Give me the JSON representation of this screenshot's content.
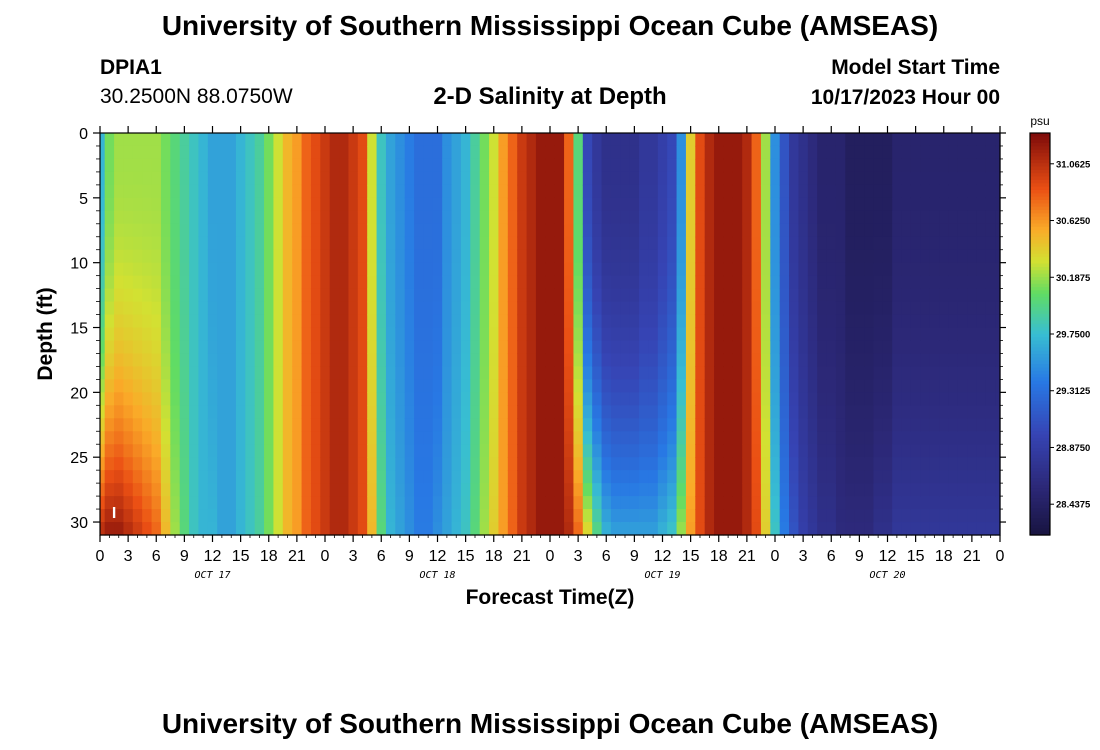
{
  "header": {
    "title_top": "University of Southern Mississippi Ocean Cube (AMSEAS)",
    "title_bottom": "University of Southern Mississippi Ocean Cube (AMSEAS)",
    "station": "DPIA1",
    "coords": "30.2500N  88.0750W",
    "subtitle": "2-D Salinity at Depth",
    "model_start_label": "Model Start Time",
    "model_start_value": "10/17/2023 Hour 00"
  },
  "chart_data": {
    "type": "heatmap",
    "title": "2-D Salinity at Depth",
    "xlabel": "Forecast Time(Z)",
    "ylabel": "Depth (ft)",
    "xlim": [
      0,
      96
    ],
    "ylim": [
      31,
      0
    ],
    "x_tick_values": [
      0,
      3,
      6,
      9,
      12,
      15,
      18,
      21,
      24,
      27,
      30,
      33,
      36,
      39,
      42,
      45,
      48,
      51,
      54,
      57,
      60,
      63,
      66,
      69,
      72,
      75,
      78,
      81,
      84,
      87,
      90,
      93,
      96
    ],
    "x_tick_labels": [
      "0",
      "3",
      "6",
      "9",
      "12",
      "15",
      "18",
      "21",
      "0",
      "3",
      "6",
      "9",
      "12",
      "15",
      "18",
      "21",
      "0",
      "3",
      "6",
      "9",
      "12",
      "15",
      "18",
      "21",
      "0",
      "3",
      "6",
      "9",
      "12",
      "15",
      "18",
      "21",
      "0"
    ],
    "date_labels": [
      {
        "label": "OCT 17",
        "at": 12
      },
      {
        "label": "OCT 18",
        "at": 36
      },
      {
        "label": "OCT 19",
        "at": 60
      },
      {
        "label": "OCT 20",
        "at": 84
      }
    ],
    "y_tick_values": [
      0,
      5,
      10,
      15,
      20,
      25,
      30
    ],
    "y_tick_labels": [
      "0",
      "5",
      "10",
      "15",
      "20",
      "25",
      "30"
    ],
    "colorbar": {
      "unit": "psu",
      "min": 28.2,
      "max": 31.3,
      "tick_values": [
        31.0625,
        30.625,
        30.1875,
        29.75,
        29.3125,
        28.875,
        28.4375
      ],
      "tick_labels": [
        "31.0625",
        "30.6250",
        "30.1875",
        "29.7500",
        "29.3125",
        "28.8750",
        "28.4375"
      ]
    },
    "surface_salinity": {
      "hours": [
        0,
        1,
        2,
        3,
        4,
        5,
        6,
        7,
        8,
        9,
        10,
        11,
        12,
        13,
        14,
        15,
        16,
        17,
        18,
        19,
        20,
        21,
        22,
        23,
        24,
        25,
        26,
        27,
        28,
        29,
        30,
        31,
        32,
        33,
        34,
        35,
        36,
        37,
        38,
        39,
        40,
        41,
        42,
        43,
        44,
        45,
        46,
        47,
        48,
        49,
        50,
        51,
        52,
        53,
        54,
        55,
        56,
        57,
        58,
        59,
        60,
        61,
        62,
        63,
        64,
        65,
        66,
        67,
        68,
        69,
        70,
        71,
        72,
        73,
        74,
        75,
        76,
        77,
        78,
        79,
        80,
        81,
        82,
        83,
        84,
        85,
        86,
        87,
        88,
        89,
        90,
        91,
        92,
        93,
        94,
        95,
        96
      ],
      "values": [
        29.7,
        30.1,
        30.2,
        30.2,
        30.2,
        30.2,
        30.2,
        30.1,
        30.0,
        29.9,
        29.8,
        29.7,
        29.6,
        29.6,
        29.6,
        29.7,
        29.8,
        29.9,
        30.1,
        30.3,
        30.5,
        30.6,
        30.8,
        30.9,
        31.0,
        31.1,
        31.1,
        31.0,
        30.9,
        30.3,
        29.8,
        29.6,
        29.5,
        29.4,
        29.3,
        29.3,
        29.3,
        29.5,
        29.6,
        29.7,
        29.9,
        30.1,
        30.3,
        30.6,
        30.8,
        31.0,
        31.1,
        31.2,
        31.2,
        31.2,
        30.8,
        30.0,
        29.0,
        28.8,
        28.7,
        28.7,
        28.7,
        28.7,
        28.8,
        28.8,
        28.9,
        29.0,
        29.5,
        30.4,
        30.9,
        31.1,
        31.2,
        31.2,
        31.2,
        31.1,
        30.8,
        30.2,
        29.5,
        29.1,
        28.8,
        28.7,
        28.6,
        28.5,
        28.5,
        28.5,
        28.4,
        28.4,
        28.4,
        28.4,
        28.4,
        28.5,
        28.5,
        28.5,
        28.5,
        28.5,
        28.5,
        28.5,
        28.5,
        28.5,
        28.5,
        28.5,
        28.5
      ]
    },
    "bottom_salinity": {
      "hours": [
        0,
        1,
        2,
        3,
        4,
        5,
        6,
        7,
        8,
        9,
        10,
        11,
        12,
        13,
        14,
        15,
        16,
        17,
        18,
        19,
        20,
        21,
        22,
        23,
        24,
        25,
        26,
        27,
        28,
        29,
        30,
        31,
        32,
        33,
        34,
        35,
        36,
        37,
        38,
        39,
        40,
        41,
        42,
        43,
        44,
        45,
        46,
        47,
        48,
        49,
        50,
        51,
        52,
        53,
        54,
        55,
        56,
        57,
        58,
        59,
        60,
        61,
        62,
        63,
        64,
        65,
        66,
        67,
        68,
        69,
        70,
        71,
        72,
        73,
        74,
        75,
        76,
        77,
        78,
        79,
        80,
        81,
        82,
        83,
        84,
        85,
        86,
        87,
        88,
        89,
        90,
        91,
        92,
        93,
        94,
        95,
        96
      ],
      "values": [
        31.1,
        31.2,
        31.2,
        31.1,
        31.0,
        30.9,
        30.8,
        30.5,
        30.2,
        30.0,
        29.8,
        29.7,
        29.7,
        29.6,
        29.6,
        29.7,
        29.8,
        29.9,
        30.1,
        30.3,
        30.5,
        30.6,
        30.8,
        30.9,
        31.0,
        31.1,
        31.1,
        31.0,
        30.9,
        30.5,
        30.0,
        29.7,
        29.6,
        29.5,
        29.4,
        29.4,
        29.5,
        29.6,
        29.7,
        29.8,
        30.0,
        30.2,
        30.4,
        30.6,
        30.8,
        31.0,
        31.1,
        31.2,
        31.2,
        31.2,
        31.1,
        30.8,
        30.4,
        30.0,
        29.7,
        29.6,
        29.6,
        29.6,
        29.6,
        29.6,
        29.7,
        29.8,
        30.2,
        30.6,
        30.9,
        31.1,
        31.2,
        31.2,
        31.2,
        31.1,
        30.9,
        30.4,
        29.8,
        29.4,
        29.1,
        28.9,
        28.8,
        28.7,
        28.7,
        28.6,
        28.6,
        28.6,
        28.6,
        28.7,
        28.7,
        28.8,
        28.8,
        28.8,
        28.8,
        28.8,
        28.8,
        28.8,
        28.8,
        28.8,
        28.8,
        28.8,
        28.8
      ]
    },
    "annotation": "I"
  }
}
